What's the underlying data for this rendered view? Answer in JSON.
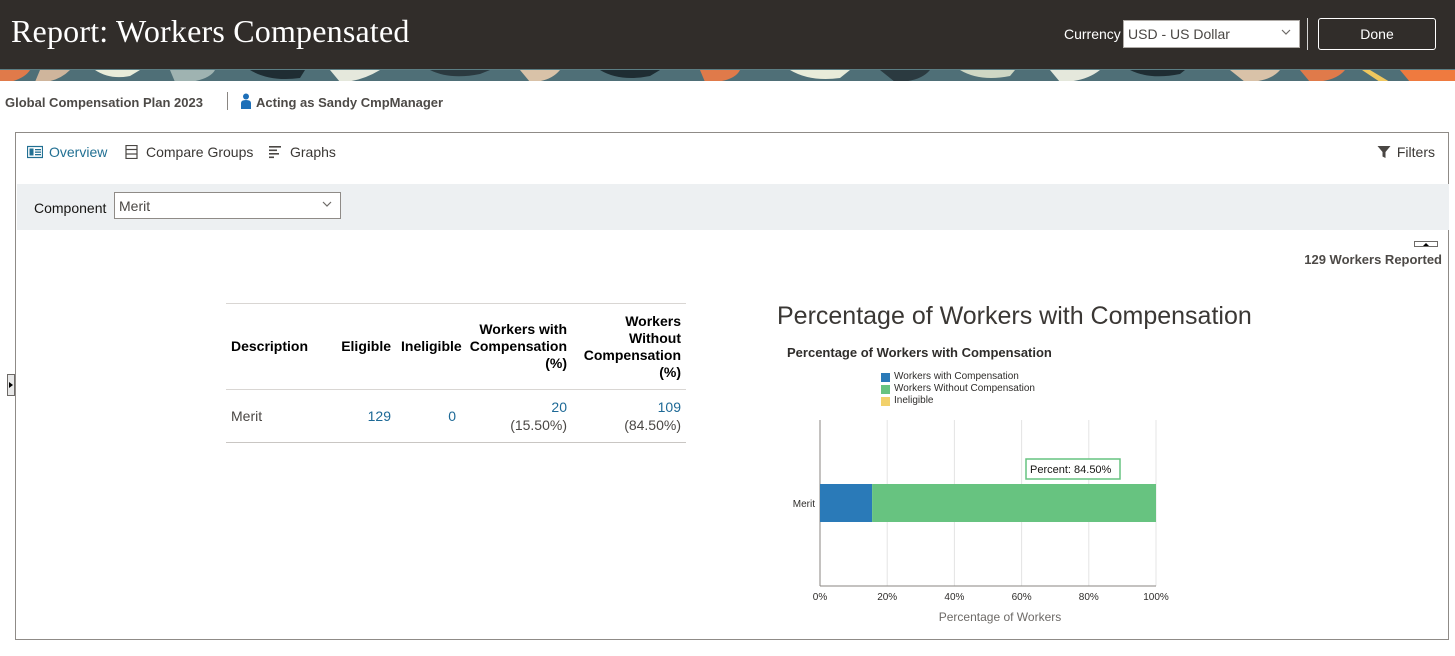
{
  "header": {
    "title": "Report: Workers Compensated",
    "currency_label": "Currency",
    "currency_value": "USD - US Dollar",
    "done_label": "Done"
  },
  "context": {
    "plan_name": "Global Compensation Plan 2023",
    "acting_as": "Acting as Sandy CmpManager"
  },
  "tabs": [
    {
      "label": "Overview",
      "active": true,
      "icon": "overview-icon"
    },
    {
      "label": "Compare Groups",
      "active": false,
      "icon": "compare-groups-icon"
    },
    {
      "label": "Graphs",
      "active": false,
      "icon": "graphs-icon"
    }
  ],
  "filters_label": "Filters",
  "component": {
    "label": "Component",
    "value": "Merit"
  },
  "workers_reported": "129 Workers Reported",
  "table": {
    "headers": {
      "description": "Description",
      "eligible": "Eligible",
      "ineligible": "Ineligible",
      "with_line1": "Workers with",
      "with_line2": "Compensation",
      "with_line3": "(%)",
      "without_line1": "Workers",
      "without_line2": "Without",
      "without_line3": "Compensation",
      "without_line4": "(%)"
    },
    "rows": [
      {
        "description": "Merit",
        "eligible": "129",
        "ineligible": "0",
        "with_count": "20",
        "with_pct": "(15.50%)",
        "without_count": "109",
        "without_pct": "(84.50%)"
      }
    ]
  },
  "chart_heading": "Percentage of Workers with Compensation",
  "chart_data": {
    "type": "bar",
    "orientation": "horizontal",
    "stacked": true,
    "title": "Percentage of Workers with Compensation",
    "categories": [
      "Merit"
    ],
    "series": [
      {
        "name": "Workers with Compensation",
        "values": [
          15.5
        ],
        "color": "#2a7ab8"
      },
      {
        "name": "Workers Without Compensation",
        "values": [
          84.5
        ],
        "color": "#67c380"
      },
      {
        "name": "Ineligible",
        "values": [
          0
        ],
        "color": "#f2d16b"
      }
    ],
    "xlabel": "Percentage of Workers",
    "xlim": [
      0,
      100
    ],
    "xticks": [
      "0%",
      "20%",
      "40%",
      "60%",
      "80%",
      "100%"
    ],
    "grid": true,
    "legend": "top-left",
    "tooltip": "Percent: 84.50%"
  }
}
